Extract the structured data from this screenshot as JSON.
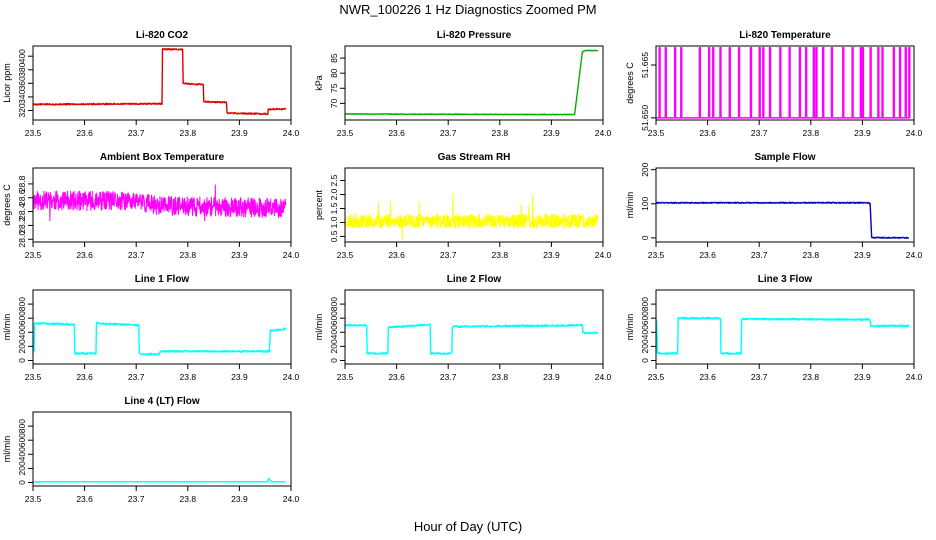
{
  "figure": {
    "title": "NWR_100226  1 Hz Diagnostics Zoomed PM",
    "xlabel": "Hour of Day (UTC)"
  },
  "chart_data": [
    {
      "type": "line",
      "title": "Li-820 CO2",
      "ylabel": "Licor ppm",
      "xlim": [
        23.5,
        24.0
      ],
      "ylim": [
        306,
        415
      ],
      "xticks": [
        23.5,
        23.6,
        23.7,
        23.8,
        23.9,
        24.0
      ],
      "xtick_labels": [
        "23.5",
        "23.6",
        "23.7",
        "23.8",
        "23.9",
        "24.0"
      ],
      "yticks": [
        320,
        340,
        360,
        380,
        400
      ],
      "ytick_labels": [
        "320",
        "340",
        "360",
        "380",
        "400"
      ],
      "series": [
        {
          "color": "#e00000",
          "noise": 1,
          "x": [
            23.5,
            23.75,
            23.751,
            23.79,
            23.791,
            23.83,
            23.831,
            23.875,
            23.876,
            23.955,
            23.956,
            23.99
          ],
          "y": [
            329,
            330,
            410,
            410,
            360,
            358,
            333,
            332,
            316,
            315,
            322,
            322
          ]
        }
      ]
    },
    {
      "type": "line",
      "title": "Li-820 Pressure",
      "ylabel": "kPa",
      "xlim": [
        23.5,
        24.0
      ],
      "ylim": [
        64.5,
        89
      ],
      "xticks": [
        23.5,
        23.6,
        23.7,
        23.8,
        23.9,
        24.0
      ],
      "xtick_labels": [
        "23.5",
        "23.6",
        "23.7",
        "23.8",
        "23.9",
        "24.0"
      ],
      "yticks": [
        70,
        75,
        80,
        85
      ],
      "ytick_labels": [
        "70",
        "75",
        "80",
        "85"
      ],
      "series": [
        {
          "color": "#00b000",
          "noise": 0.1,
          "x": [
            23.5,
            23.94,
            23.945,
            23.96,
            23.965,
            23.99
          ],
          "y": [
            66.5,
            66.3,
            66.3,
            87,
            87.5,
            87.5
          ]
        }
      ]
    },
    {
      "type": "line",
      "title": "Li-820 Temperature",
      "ylabel": "degrees C",
      "xlim": [
        23.5,
        24.0
      ],
      "ylim": [
        51.6494,
        51.6704
      ],
      "xticks": [
        23.5,
        23.6,
        23.7,
        23.8,
        23.9,
        24.0
      ],
      "xtick_labels": [
        "23.5",
        "23.6",
        "23.7",
        "23.8",
        "23.9",
        "24.0"
      ],
      "yticks": [
        51.65,
        51.665
      ],
      "ytick_labels": [
        "51.650",
        "51.665"
      ],
      "series": [
        {
          "color": "#ff00ff",
          "style": "spikes",
          "base": 51.65,
          "top": 51.6699,
          "x": [
            23.506,
            23.518,
            23.536,
            23.548,
            23.584,
            23.602,
            23.61,
            23.624,
            23.642,
            23.66,
            23.683,
            23.7,
            23.707,
            23.72,
            23.74,
            23.758,
            23.778,
            23.79,
            23.805,
            23.81,
            23.823,
            23.84,
            23.862,
            23.88,
            23.896,
            23.9,
            23.915,
            23.93,
            23.938,
            23.96,
            23.972,
            23.983,
            23.99
          ]
        }
      ]
    },
    {
      "type": "line",
      "title": "Ambient Box Temperature",
      "ylabel": "degrees C",
      "xlim": [
        23.5,
        24.0
      ],
      "ylim": [
        27.96,
        29.03
      ],
      "xticks": [
        23.5,
        23.6,
        23.7,
        23.8,
        23.9,
        24.0
      ],
      "xtick_labels": [
        "23.5",
        "23.6",
        "23.7",
        "23.8",
        "23.9",
        "24.0"
      ],
      "yticks": [
        28.0,
        28.2,
        28.4,
        28.6,
        28.8
      ],
      "ytick_labels": [
        "28.0",
        "28.2",
        "28.4",
        "28.6",
        "28.8"
      ],
      "series": [
        {
          "color": "#ff00ff",
          "style": "noise",
          "seed": 11,
          "amp": 0.14,
          "spike": 0.5,
          "x": [
            23.5,
            23.7,
            23.75,
            23.99
          ],
          "y": [
            28.56,
            28.55,
            28.48,
            28.45
          ]
        }
      ]
    },
    {
      "type": "line",
      "title": "Gas Stream RH",
      "ylabel": "percent",
      "xlim": [
        23.5,
        24.0
      ],
      "ylim": [
        0.3,
        2.95
      ],
      "xticks": [
        23.5,
        23.6,
        23.7,
        23.8,
        23.9,
        24.0
      ],
      "xtick_labels": [
        "23.5",
        "23.6",
        "23.7",
        "23.8",
        "23.9",
        "24.0"
      ],
      "yticks": [
        0.5,
        1.0,
        1.5,
        2.0,
        2.5
      ],
      "ytick_labels": [
        "0.5",
        "1.0",
        "1.5",
        "2.0",
        "2.5"
      ],
      "series": [
        {
          "color": "#ffff00",
          "style": "noise",
          "seed": 23,
          "amp": 0.25,
          "spike": 1.6,
          "x": [
            23.5,
            23.99
          ],
          "y": [
            1.05,
            1.05
          ]
        }
      ]
    },
    {
      "type": "line",
      "title": "Sample Flow",
      "ylabel": "ml/min",
      "xlim": [
        23.5,
        24.0
      ],
      "ylim": [
        -12,
        205
      ],
      "xticks": [
        23.5,
        23.6,
        23.7,
        23.8,
        23.9,
        24.0
      ],
      "xtick_labels": [
        "23.5",
        "23.6",
        "23.7",
        "23.8",
        "23.9",
        "24.0"
      ],
      "yticks": [
        0,
        100,
        200
      ],
      "ytick_labels": [
        "0",
        "100",
        "200"
      ],
      "series": [
        {
          "color": "#0000c0",
          "noise": 1.5,
          "x": [
            23.5,
            23.912,
            23.915,
            23.918,
            23.99
          ],
          "y": [
            103,
            103,
            100,
            1,
            0
          ]
        }
      ]
    },
    {
      "type": "line",
      "title": "Line 1 Flow",
      "ylabel": "ml/min",
      "xlim": [
        23.5,
        24.0
      ],
      "ylim": [
        -50,
        1000
      ],
      "xticks": [
        23.5,
        23.6,
        23.7,
        23.8,
        23.9,
        24.0
      ],
      "xtick_labels": [
        "23.5",
        "23.6",
        "23.7",
        "23.8",
        "23.9",
        "24.0"
      ],
      "yticks": [
        0,
        200,
        400,
        600,
        800
      ],
      "ytick_labels": [
        "0",
        "200",
        "400",
        "600",
        "800"
      ],
      "series": [
        {
          "color": "#00ffff",
          "noise": 12,
          "x": [
            23.5,
            23.502,
            23.503,
            23.58,
            23.581,
            23.622,
            23.623,
            23.705,
            23.706,
            23.745,
            23.746,
            23.958,
            23.96,
            23.99
          ],
          "y": [
            120,
            120,
            530,
            510,
            100,
            100,
            530,
            500,
            90,
            90,
            130,
            130,
            420,
            450
          ]
        }
      ]
    },
    {
      "type": "line",
      "title": "Line 2 Flow",
      "ylabel": "ml/min",
      "xlim": [
        23.5,
        24.0
      ],
      "ylim": [
        -50,
        1000
      ],
      "xticks": [
        23.5,
        23.6,
        23.7,
        23.8,
        23.9,
        24.0
      ],
      "xtick_labels": [
        "23.5",
        "23.6",
        "23.7",
        "23.8",
        "23.9",
        "24.0"
      ],
      "yticks": [
        0,
        200,
        400,
        600,
        800
      ],
      "ytick_labels": [
        "0",
        "200",
        "400",
        "600",
        "800"
      ],
      "series": [
        {
          "color": "#00ffff",
          "noise": 12,
          "x": [
            23.5,
            23.542,
            23.543,
            23.583,
            23.584,
            23.665,
            23.666,
            23.707,
            23.708,
            23.96,
            23.961,
            23.99
          ],
          "y": [
            500,
            500,
            100,
            100,
            470,
            510,
            100,
            100,
            480,
            500,
            390,
            390
          ]
        }
      ]
    },
    {
      "type": "line",
      "title": "Line 3 Flow",
      "ylabel": "ml/min",
      "xlim": [
        23.5,
        24.0
      ],
      "ylim": [
        -50,
        1000
      ],
      "xticks": [
        23.5,
        23.6,
        23.7,
        23.8,
        23.9,
        24.0
      ],
      "xtick_labels": [
        "23.5",
        "23.6",
        "23.7",
        "23.8",
        "23.9",
        "24.0"
      ],
      "yticks": [
        0,
        200,
        400,
        600,
        800
      ],
      "ytick_labels": [
        "0",
        "200",
        "400",
        "600",
        "800"
      ],
      "series": [
        {
          "color": "#00ffff",
          "noise": 12,
          "x": [
            23.5,
            23.501,
            23.503,
            23.542,
            23.543,
            23.625,
            23.626,
            23.665,
            23.666,
            23.915,
            23.916,
            23.99
          ],
          "y": [
            580,
            580,
            100,
            100,
            600,
            600,
            100,
            100,
            590,
            580,
            490,
            490
          ]
        }
      ]
    },
    {
      "type": "line",
      "title": "Line 4 (LT) Flow",
      "ylabel": "ml/min",
      "xlim": [
        23.5,
        24.0
      ],
      "ylim": [
        -50,
        1000
      ],
      "xticks": [
        23.5,
        23.6,
        23.7,
        23.8,
        23.9,
        24.0
      ],
      "xtick_labels": [
        "23.5",
        "23.6",
        "23.7",
        "23.8",
        "23.9",
        "24.0"
      ],
      "yticks": [
        0,
        200,
        400,
        600,
        800
      ],
      "ytick_labels": [
        "0",
        "200",
        "400",
        "600",
        "800"
      ],
      "series": [
        {
          "color": "#00ffff",
          "noise": 2,
          "x": [
            23.5,
            23.955,
            23.957,
            23.96,
            23.963,
            23.99
          ],
          "y": [
            10,
            10,
            60,
            30,
            10,
            10
          ]
        }
      ]
    }
  ]
}
